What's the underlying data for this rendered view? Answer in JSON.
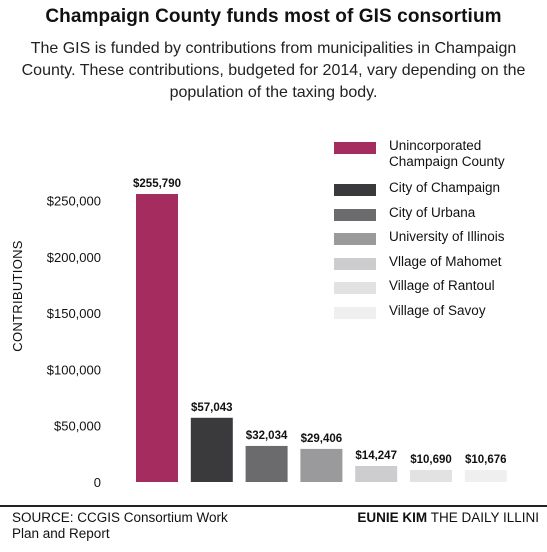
{
  "title": "Champaign County funds most of GIS consortium",
  "subtitle": "The GIS is funded by contributions from municipalities in Champaign County. These contributions, budgeted for 2014, vary depending on the population of the taxing body.",
  "footer": {
    "source": "SOURCE: CCGIS Consortium Work Plan and Report",
    "credit_name": "EUNIE KIM",
    "credit_org": "THE DAILY ILLINI"
  },
  "chart_data": {
    "type": "bar",
    "ylabel": "CONTRIBUTIONS",
    "xlabel": "",
    "ylim": [
      0,
      255790
    ],
    "yticks": [
      0,
      50000,
      100000,
      150000,
      200000,
      250000
    ],
    "ytick_labels": [
      "0",
      "$50,000",
      "$100,000",
      "$150,000",
      "$200,000",
      "$250,000"
    ],
    "grid": false,
    "legend_position": "top-right",
    "categories": [
      "Unincorporated Champaign County",
      "City of Champaign",
      "City of Urbana",
      "University of Illinois",
      "Vllage of Mahomet",
      "Village of Rantoul",
      "Village of Savoy"
    ],
    "legend_labels": [
      [
        "Unincorporated",
        "Champaign County"
      ],
      [
        "City of Champaign"
      ],
      [
        "City of Urbana"
      ],
      [
        "University of Illinois"
      ],
      [
        "Vllage of Mahomet"
      ],
      [
        "Village of Rantoul"
      ],
      [
        "Village of Savoy"
      ]
    ],
    "values": [
      255790,
      57043,
      32034,
      29406,
      14247,
      10690,
      10676
    ],
    "data_labels": [
      "$255,790",
      "$57,043",
      "$32,034",
      "$29,406",
      "$14,247",
      "$10,690",
      "$10,676"
    ],
    "colors": [
      "#a52c5f",
      "#3a3a3c",
      "#6b6b6d",
      "#9a9a9c",
      "#cdcdcf",
      "#e2e2e3",
      "#efefef"
    ]
  }
}
